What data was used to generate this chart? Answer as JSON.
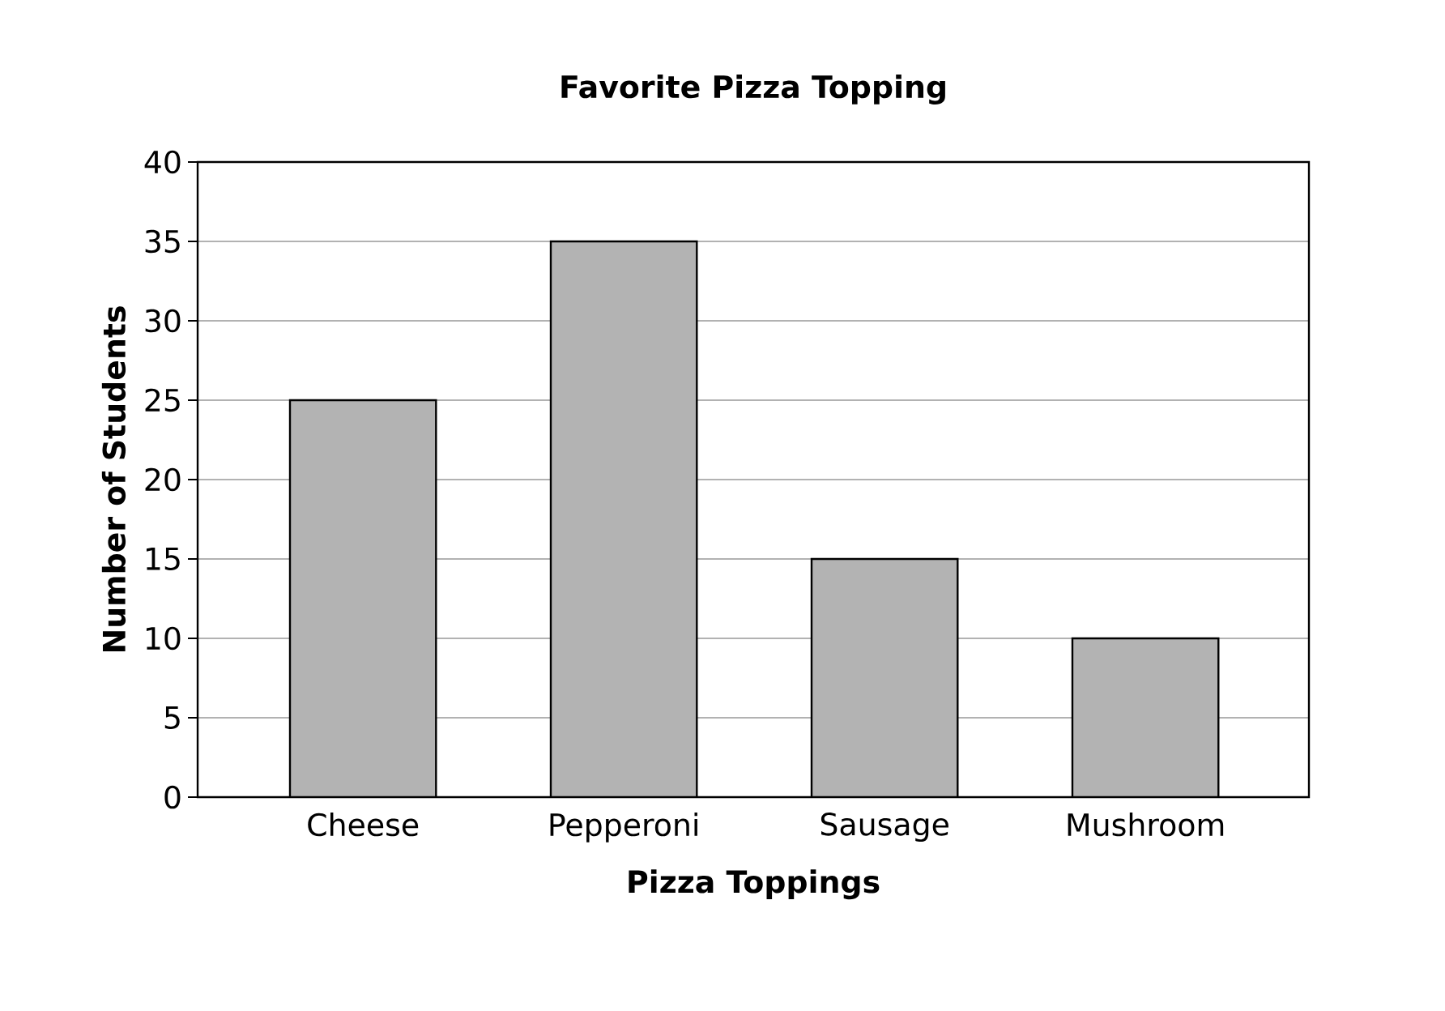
{
  "chart_data": {
    "type": "bar",
    "title": "Favorite Pizza Topping",
    "xlabel": "Pizza Toppings",
    "ylabel": "Number of Students",
    "categories": [
      "Cheese",
      "Pepperoni",
      "Sausage",
      "Mushroom"
    ],
    "values": [
      25,
      35,
      15,
      10
    ],
    "color": "#b3b3b3",
    "ylim": [
      0,
      40
    ],
    "yticks": [
      0,
      5,
      10,
      15,
      20,
      25,
      30,
      35,
      40
    ],
    "grid": "y"
  }
}
